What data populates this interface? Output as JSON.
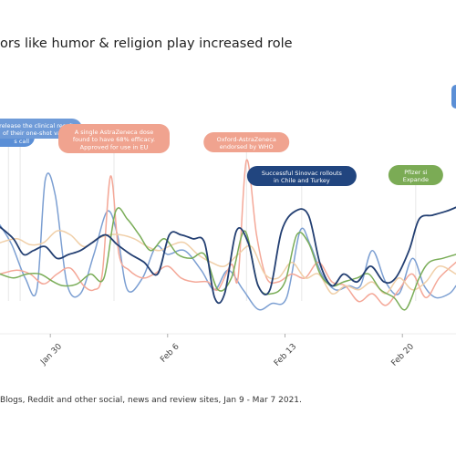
{
  "title": "ors like humor & religion play increased role",
  "source": "Blogs, Reddit and other social, news and review sites, Jan 9 - Mar 7 2021.",
  "chart_data": {
    "type": "line",
    "title": "ors like humor & religion play increased role",
    "x_tick_labels": [
      "Jan 30",
      "Feb 6",
      "Feb 13",
      "Feb 20"
    ],
    "x_tick_days": [
      0,
      7,
      14,
      21
    ],
    "x_range_days": [
      -3,
      24.2
    ],
    "y_range": [
      0,
      100
    ],
    "grid": false,
    "series": [
      {
        "color": "#7c9fd2",
        "values": [
          [
            -3,
            55
          ],
          [
            -2.3,
            45
          ],
          [
            -1.5,
            28
          ],
          [
            -0.8,
            22
          ],
          [
            -0.3,
            78
          ],
          [
            0.3,
            70
          ],
          [
            1,
            25
          ],
          [
            1.8,
            20
          ],
          [
            2.6,
            40
          ],
          [
            3.4,
            62
          ],
          [
            4,
            50
          ],
          [
            4.6,
            22
          ],
          [
            5.5,
            28
          ],
          [
            6.3,
            44
          ],
          [
            7,
            40
          ],
          [
            8,
            42
          ],
          [
            9,
            32
          ],
          [
            9.8,
            22
          ],
          [
            10.6,
            32
          ],
          [
            11.5,
            22
          ],
          [
            12.4,
            12
          ],
          [
            13.2,
            15
          ],
          [
            14.1,
            18
          ],
          [
            14.9,
            52
          ],
          [
            15.5,
            45
          ],
          [
            16.2,
            30
          ],
          [
            17,
            22
          ],
          [
            17.8,
            24
          ],
          [
            18.5,
            24
          ],
          [
            19.2,
            42
          ],
          [
            20,
            26
          ],
          [
            20.8,
            20
          ],
          [
            21.6,
            38
          ],
          [
            22.3,
            24
          ],
          [
            23,
            18
          ],
          [
            23.8,
            20
          ],
          [
            24.2,
            24
          ]
        ]
      },
      {
        "color": "#f4a898",
        "values": [
          [
            -3,
            30
          ],
          [
            -2,
            32
          ],
          [
            -1.2,
            30
          ],
          [
            -0.4,
            25
          ],
          [
            0.4,
            30
          ],
          [
            1.2,
            33
          ],
          [
            2,
            24
          ],
          [
            2.6,
            22
          ],
          [
            3.1,
            30
          ],
          [
            3.6,
            80
          ],
          [
            4.1,
            40
          ],
          [
            4.7,
            32
          ],
          [
            5.5,
            28
          ],
          [
            6.2,
            30
          ],
          [
            7,
            34
          ],
          [
            7.8,
            28
          ],
          [
            8.6,
            26
          ],
          [
            9.4,
            26
          ],
          [
            10,
            22
          ],
          [
            10.8,
            35
          ],
          [
            11.2,
            28
          ],
          [
            11.7,
            88
          ],
          [
            12.3,
            50
          ],
          [
            12.9,
            28
          ],
          [
            13.6,
            26
          ],
          [
            14.4,
            30
          ],
          [
            15.2,
            28
          ],
          [
            16,
            36
          ],
          [
            16.8,
            26
          ],
          [
            17.6,
            24
          ],
          [
            18.4,
            16
          ],
          [
            19.2,
            20
          ],
          [
            20,
            14
          ],
          [
            20.8,
            22
          ],
          [
            21.6,
            30
          ],
          [
            22.4,
            18
          ],
          [
            23.2,
            28
          ],
          [
            24.2,
            36
          ]
        ]
      },
      {
        "color": "#f0cfa8",
        "values": [
          [
            -3,
            46
          ],
          [
            -2,
            48
          ],
          [
            -1.2,
            45
          ],
          [
            -0.4,
            46
          ],
          [
            0.4,
            52
          ],
          [
            1.2,
            50
          ],
          [
            2,
            44
          ],
          [
            2.8,
            48
          ],
          [
            3.5,
            50
          ],
          [
            4.2,
            50
          ],
          [
            5,
            48
          ],
          [
            5.8,
            44
          ],
          [
            6.5,
            42
          ],
          [
            7.3,
            45
          ],
          [
            8,
            46
          ],
          [
            8.8,
            40
          ],
          [
            9.6,
            36
          ],
          [
            10.4,
            34
          ],
          [
            11.2,
            40
          ],
          [
            12,
            44
          ],
          [
            12.8,
            30
          ],
          [
            13.6,
            28
          ],
          [
            14.4,
            36
          ],
          [
            15.2,
            28
          ],
          [
            16,
            30
          ],
          [
            16.8,
            20
          ],
          [
            17.6,
            24
          ],
          [
            18.4,
            22
          ],
          [
            19.2,
            26
          ],
          [
            20,
            20
          ],
          [
            20.8,
            28
          ],
          [
            21.6,
            22
          ],
          [
            22.4,
            26
          ],
          [
            23.2,
            34
          ],
          [
            24.2,
            30
          ]
        ]
      },
      {
        "color": "#7aad58",
        "values": [
          [
            -3,
            30
          ],
          [
            -2.2,
            28
          ],
          [
            -1.4,
            30
          ],
          [
            -0.6,
            30
          ],
          [
            0.2,
            26
          ],
          [
            0.8,
            24
          ],
          [
            1.6,
            25
          ],
          [
            2.4,
            30
          ],
          [
            3.2,
            28
          ],
          [
            3.9,
            62
          ],
          [
            4.6,
            58
          ],
          [
            5.3,
            50
          ],
          [
            6,
            42
          ],
          [
            6.8,
            48
          ],
          [
            7.6,
            40
          ],
          [
            8.4,
            38
          ],
          [
            9.2,
            40
          ],
          [
            10,
            22
          ],
          [
            10.8,
            28
          ],
          [
            11.6,
            52
          ],
          [
            12.4,
            24
          ],
          [
            13.2,
            20
          ],
          [
            14,
            26
          ],
          [
            14.7,
            50
          ],
          [
            15.4,
            46
          ],
          [
            16.1,
            30
          ],
          [
            16.8,
            24
          ],
          [
            17.5,
            26
          ],
          [
            18.3,
            28
          ],
          [
            19,
            30
          ],
          [
            19.7,
            22
          ],
          [
            20.5,
            18
          ],
          [
            21.2,
            12
          ],
          [
            22,
            28
          ],
          [
            22.6,
            36
          ],
          [
            23.4,
            38
          ],
          [
            24.2,
            40
          ]
        ]
      },
      {
        "color": "#233f72",
        "values": [
          [
            -3,
            54
          ],
          [
            -2.2,
            48
          ],
          [
            -1.6,
            40
          ],
          [
            -1,
            42
          ],
          [
            -0.3,
            44
          ],
          [
            0.4,
            38
          ],
          [
            1.1,
            40
          ],
          [
            1.8,
            42
          ],
          [
            2.5,
            46
          ],
          [
            3.3,
            50
          ],
          [
            4,
            45
          ],
          [
            4.8,
            40
          ],
          [
            5.6,
            36
          ],
          [
            6.4,
            30
          ],
          [
            7.1,
            50
          ],
          [
            7.8,
            50
          ],
          [
            8.5,
            48
          ],
          [
            9.2,
            46
          ],
          [
            9.8,
            18
          ],
          [
            10.4,
            20
          ],
          [
            11.1,
            52
          ],
          [
            11.8,
            46
          ],
          [
            12.4,
            24
          ],
          [
            13.1,
            22
          ],
          [
            13.8,
            52
          ],
          [
            14.6,
            62
          ],
          [
            15.4,
            60
          ],
          [
            16.1,
            35
          ],
          [
            16.8,
            24
          ],
          [
            17.5,
            30
          ],
          [
            18.3,
            26
          ],
          [
            19.1,
            34
          ],
          [
            19.9,
            26
          ],
          [
            20.6,
            28
          ],
          [
            21.4,
            42
          ],
          [
            22,
            58
          ],
          [
            22.8,
            60
          ],
          [
            23.6,
            62
          ],
          [
            24.2,
            64
          ]
        ]
      }
    ],
    "annotations": [
      {
        "lines": [
          "shot",
          "s call"
        ],
        "color": "#5b8fd6",
        "day": -2.5
      },
      {
        "lines": [
          "J release the clinical results",
          "of their one-shot vaccine"
        ],
        "color": "#6f9bd8",
        "day": -1.8
      },
      {
        "lines": [
          "A single AstraZeneca dose",
          "found to have 68% efficacy.",
          "Approved for use in EU"
        ],
        "color": "#f0a38f",
        "day": 3.8
      },
      {
        "lines": [
          "Oxford-AstraZeneca",
          "endorsed by WHO"
        ],
        "color": "#f0a38f",
        "day": 11.7
      },
      {
        "lines": [
          "Successful Sinovac rollouts",
          "in Chile and Turkey"
        ],
        "color": "#21457f",
        "day": 15
      },
      {
        "lines": [
          "Pfizer si",
          "Expande"
        ],
        "color": "#7bab55",
        "day": 21.8
      }
    ]
  }
}
